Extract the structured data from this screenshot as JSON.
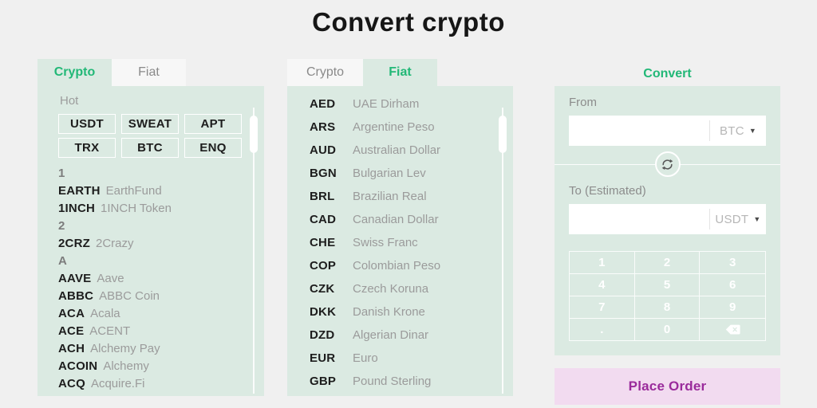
{
  "page": {
    "title": "Convert crypto"
  },
  "colors": {
    "accent_green": "#22b877",
    "panel_mint": "#dbeae2",
    "page_background": "#f0f0f0",
    "place_order_background": "#f2dbf0",
    "place_order_text": "#9a2b9b"
  },
  "left_panel": {
    "tabs": [
      {
        "label": "Crypto",
        "active": true
      },
      {
        "label": "Fiat",
        "active": false
      }
    ],
    "hot_label": "Hot",
    "hot_tokens": [
      "USDT",
      "SWEAT",
      "APT",
      "TRX",
      "BTC",
      "ENQ"
    ],
    "list": [
      {
        "section": "1"
      },
      {
        "symbol": "EARTH",
        "name": "EarthFund"
      },
      {
        "symbol": "1INCH",
        "name": "1INCH Token"
      },
      {
        "section": "2"
      },
      {
        "symbol": "2CRZ",
        "name": "2Crazy"
      },
      {
        "section": "A"
      },
      {
        "symbol": "AAVE",
        "name": "Aave"
      },
      {
        "symbol": "ABBC",
        "name": "ABBC Coin"
      },
      {
        "symbol": "ACA",
        "name": "Acala"
      },
      {
        "symbol": "ACE",
        "name": "ACENT"
      },
      {
        "symbol": "ACH",
        "name": "Alchemy Pay"
      },
      {
        "symbol": "ACOIN",
        "name": "Alchemy"
      },
      {
        "symbol": "ACQ",
        "name": "Acquire.Fi"
      }
    ]
  },
  "middle_panel": {
    "tabs": [
      {
        "label": "Crypto",
        "active": false
      },
      {
        "label": "Fiat",
        "active": true
      }
    ],
    "list": [
      {
        "symbol": "AED",
        "name": "UAE Dirham"
      },
      {
        "symbol": "ARS",
        "name": "Argentine Peso"
      },
      {
        "symbol": "AUD",
        "name": "Australian Dollar"
      },
      {
        "symbol": "BGN",
        "name": "Bulgarian Lev"
      },
      {
        "symbol": "BRL",
        "name": "Brazilian Real"
      },
      {
        "symbol": "CAD",
        "name": "Canadian Dollar"
      },
      {
        "symbol": "CHE",
        "name": "Swiss Franc"
      },
      {
        "symbol": "COP",
        "name": "Colombian Peso"
      },
      {
        "symbol": "CZK",
        "name": "Czech Koruna"
      },
      {
        "symbol": "DKK",
        "name": "Danish Krone"
      },
      {
        "symbol": "DZD",
        "name": "Algerian Dinar"
      },
      {
        "symbol": "EUR",
        "name": "Euro"
      },
      {
        "symbol": "GBP",
        "name": "Pound Sterling"
      }
    ]
  },
  "convert_panel": {
    "title": "Convert",
    "from_label": "From",
    "from_value": "",
    "from_currency": "BTC",
    "to_label": "To (Estimated)",
    "to_value": "",
    "to_currency": "USDT",
    "keypad": [
      "1",
      "2",
      "3",
      "4",
      "5",
      "6",
      "7",
      "8",
      "9",
      ".",
      "0",
      "backspace"
    ],
    "place_order_label": "Place Order"
  }
}
